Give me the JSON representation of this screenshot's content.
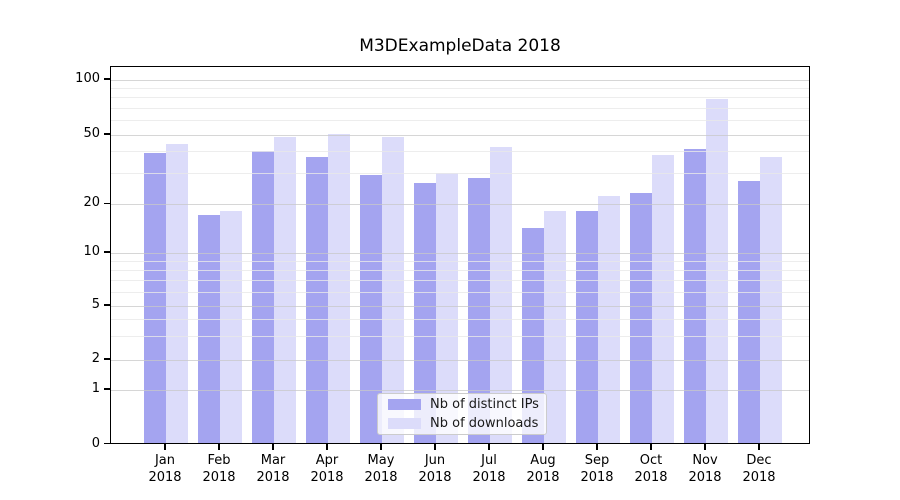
{
  "title": "M3DExampleData 2018",
  "chart_data": {
    "type": "bar",
    "title": "M3DExampleData 2018",
    "categories": [
      "Jan",
      "Feb",
      "Mar",
      "Apr",
      "May",
      "Jun",
      "Jul",
      "Aug",
      "Sep",
      "Oct",
      "Nov",
      "Dec"
    ],
    "year": "2018",
    "series": [
      {
        "name": "Nb of distinct IPs",
        "color": "#a4a4f0",
        "values": [
          39,
          17,
          40,
          37,
          29,
          26,
          28,
          14,
          18,
          23,
          41,
          27
        ]
      },
      {
        "name": "Nb of downloads",
        "color": "#dcdcfa",
        "values": [
          44,
          18,
          48,
          50,
          48,
          30,
          42,
          18,
          22,
          38,
          78,
          37
        ]
      }
    ],
    "yscale": "symlog",
    "yticks": [
      0,
      1,
      2,
      5,
      10,
      20,
      50,
      100
    ],
    "minor_yticks": [
      3,
      4,
      6,
      7,
      8,
      9,
      30,
      40,
      60,
      70,
      80,
      90
    ],
    "ylim": [
      0,
      115
    ],
    "xlabel": "",
    "ylabel": "",
    "grid": true,
    "legend_position": "lower center"
  },
  "colors": {
    "bar_distinct_ips": "#a4a4f0",
    "bar_downloads": "#dcdcfa",
    "grid_major": "#c8c8c8",
    "grid_minor": "#e9e9e9",
    "axis_frame": "#000000",
    "background": "#ffffff"
  }
}
